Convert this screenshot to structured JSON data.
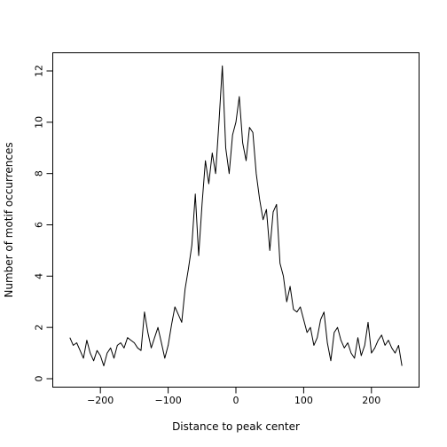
{
  "chart_data": {
    "type": "line",
    "xlabel": "Distance to peak center",
    "ylabel": "Number of motif occurrences",
    "xlim": [
      -250,
      250
    ],
    "ylim": [
      0,
      12.5
    ],
    "xticks": [
      -200,
      -100,
      0,
      100,
      200
    ],
    "yticks": [
      0,
      2,
      4,
      6,
      8,
      10,
      12
    ],
    "xtick_labels": [
      "−200",
      "−100",
      "0",
      "100",
      "200"
    ],
    "ytick_labels": [
      "0",
      "2",
      "4",
      "6",
      "8",
      "10",
      "12"
    ],
    "grid": false,
    "series": [
      {
        "color": "#000000",
        "x": [
          -245,
          -240,
          -235,
          -230,
          -225,
          -220,
          -215,
          -210,
          -205,
          -200,
          -195,
          -190,
          -185,
          -180,
          -175,
          -170,
          -165,
          -160,
          -155,
          -150,
          -145,
          -140,
          -135,
          -130,
          -125,
          -120,
          -115,
          -110,
          -105,
          -100,
          -95,
          -90,
          -85,
          -80,
          -75,
          -70,
          -65,
          -60,
          -55,
          -50,
          -45,
          -40,
          -35,
          -30,
          -25,
          -20,
          -15,
          -10,
          -5,
          0,
          5,
          10,
          15,
          20,
          25,
          30,
          35,
          40,
          45,
          50,
          55,
          60,
          65,
          70,
          75,
          80,
          85,
          90,
          95,
          100,
          105,
          110,
          115,
          120,
          125,
          130,
          135,
          140,
          145,
          150,
          155,
          160,
          165,
          170,
          175,
          180,
          185,
          190,
          195,
          200,
          205,
          210,
          215,
          220,
          225,
          230,
          235,
          240,
          245
        ],
        "y": [
          1.6,
          1.3,
          1.4,
          1.1,
          0.8,
          1.5,
          1.0,
          0.7,
          1.1,
          0.9,
          0.5,
          1.0,
          1.2,
          0.8,
          1.3,
          1.4,
          1.2,
          1.6,
          1.5,
          1.4,
          1.2,
          1.1,
          2.6,
          1.8,
          1.2,
          1.6,
          2.0,
          1.4,
          0.8,
          1.3,
          2.1,
          2.8,
          2.5,
          2.2,
          3.5,
          4.3,
          5.2,
          7.2,
          4.8,
          6.8,
          8.5,
          7.6,
          8.8,
          8.0,
          10.0,
          12.2,
          9.0,
          8.0,
          9.5,
          10.0,
          11.0,
          9.2,
          8.5,
          9.8,
          9.6,
          8.0,
          7.0,
          6.2,
          6.6,
          5.0,
          6.5,
          6.8,
          4.5,
          4.0,
          3.0,
          3.6,
          2.7,
          2.6,
          2.8,
          2.3,
          1.8,
          2.0,
          1.3,
          1.6,
          2.3,
          2.6,
          1.4,
          0.7,
          1.8,
          2.0,
          1.5,
          1.2,
          1.4,
          1.0,
          0.8,
          1.6,
          0.9,
          1.3,
          2.2,
          1.0,
          1.2,
          1.5,
          1.7,
          1.3,
          1.5,
          1.2,
          1.0,
          1.3,
          0.5
        ]
      }
    ]
  }
}
